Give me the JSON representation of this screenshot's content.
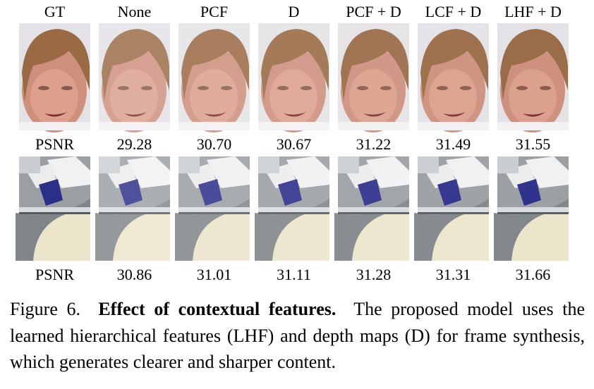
{
  "figure": {
    "columns": [
      "GT",
      "None",
      "PCF",
      "D",
      "PCF + D",
      "LCF + D",
      "LHF + D"
    ],
    "rows": [
      {
        "label": "PSNR",
        "values": [
          "29.28",
          "30.70",
          "30.67",
          "31.22",
          "31.49",
          "31.55"
        ]
      },
      {
        "label": "PSNR",
        "values": [
          "30.86",
          "31.01",
          "31.11",
          "31.28",
          "31.31",
          "31.66"
        ]
      }
    ]
  },
  "caption": {
    "label": "Figure 6.",
    "title": "Effect of contextual features.",
    "text": "The proposed model uses the learned hierarchical features (LHF) and depth maps (D) for frame synthesis, which generates clearer and sharper content."
  }
}
